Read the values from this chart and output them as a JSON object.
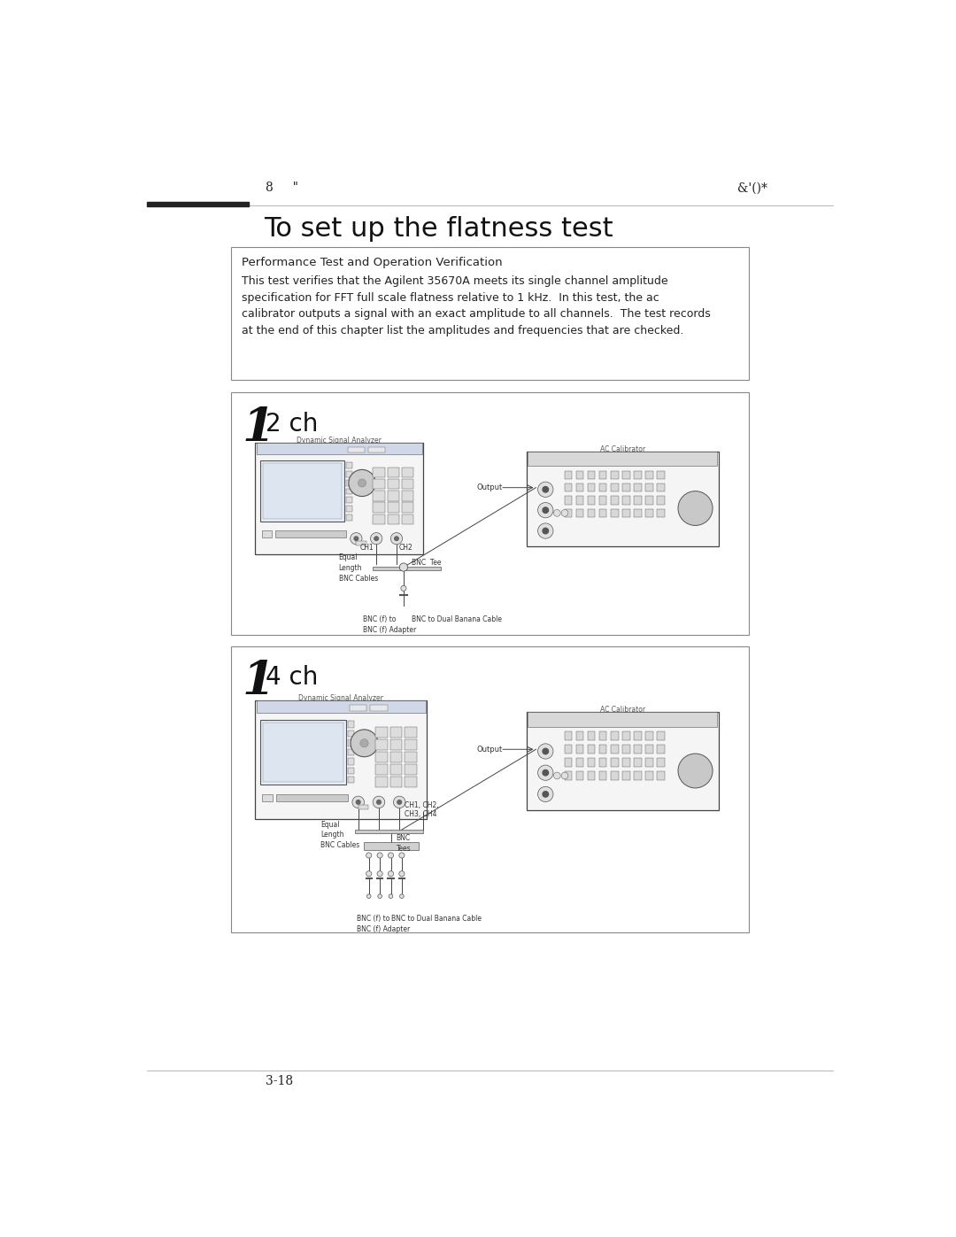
{
  "page_bg": "#ffffff",
  "header_left": "8     \"",
  "header_right": "&'()*",
  "title": "To set up the flatness test",
  "box1_header": "Performance Test and Operation Verification",
  "box1_body_line1": "This test verifies that the Agilent 35670A meets its single channel amplitude",
  "box1_body_line2": "specification for FFT full scale flatness relative to 1 kHz.  In this test, the ac",
  "box1_body_line3": "calibrator outputs a signal with an exact amplitude to all channels.  The test records",
  "box1_body_line4": "at the end of this chapter list the amplitudes and frequencies that are checked.",
  "step1_label": "1",
  "step1_ch": "2 ch",
  "step2_label": "1",
  "step2_ch": "4 ch",
  "footer_left": "3-18",
  "title_fontsize": 22,
  "header_fontsize": 10,
  "body_fontsize": 9.5,
  "step_num_fontsize": 36,
  "step_ch_fontsize": 18
}
